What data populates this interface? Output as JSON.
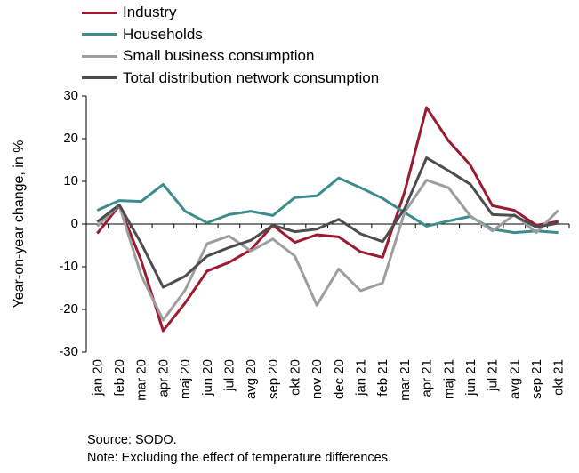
{
  "chart_data": {
    "type": "line",
    "title": "",
    "xlabel": "",
    "ylabel": "Year-on-year change, in %",
    "ylim": [
      -30,
      30
    ],
    "yticks": [
      -30,
      -20,
      -10,
      0,
      10,
      20,
      30
    ],
    "grid": false,
    "legend_position": "top-left",
    "categories": [
      "jan 20",
      "feb 20",
      "mar 20",
      "apr 20",
      "maj 20",
      "jun 20",
      "jul 20",
      "avg 20",
      "sep 20",
      "okt 20",
      "nov 20",
      "dec 20",
      "jan 21",
      "feb 21",
      "mar 21",
      "apr 21",
      "maj 21",
      "jun 21",
      "jul 21",
      "avg 21",
      "sep 21",
      "okt 21"
    ],
    "series": [
      {
        "name": "Industry",
        "color": "#9b1b30",
        "values": [
          -2.2,
          4.3,
          -8.5,
          -25.0,
          -18.5,
          -11.0,
          -9.0,
          -6.0,
          -0.3,
          -4.3,
          -2.5,
          -3.0,
          -6.5,
          -7.8,
          7.5,
          27.3,
          19.5,
          13.8,
          4.3,
          3.2,
          -0.3,
          0.6
        ]
      },
      {
        "name": "Households",
        "color": "#3c8c8c",
        "values": [
          3.2,
          5.5,
          5.3,
          9.3,
          3.0,
          0.3,
          2.2,
          3.0,
          2.0,
          6.2,
          6.6,
          10.8,
          8.5,
          6.0,
          2.7,
          -0.5,
          0.7,
          1.8,
          -1.2,
          -2.0,
          -1.6,
          -2.0
        ]
      },
      {
        "name": "Small business consumption",
        "color": "#9e9e9e",
        "values": [
          -0.5,
          4.4,
          -12.0,
          -22.5,
          -15.5,
          -4.6,
          -2.8,
          -6.3,
          -3.5,
          -7.5,
          -19.0,
          -10.5,
          -15.6,
          -13.8,
          2.8,
          10.3,
          8.5,
          1.9,
          -1.6,
          2.2,
          -2.0,
          3.2
        ]
      },
      {
        "name": "Total distribution network consumption",
        "color": "#4d4d4f",
        "values": [
          0.5,
          4.5,
          -4.5,
          -14.8,
          -12.2,
          -7.5,
          -5.5,
          -3.8,
          -0.3,
          -1.8,
          -1.2,
          1.1,
          -2.3,
          -4.1,
          3.6,
          15.5,
          12.5,
          9.3,
          2.2,
          2.0,
          -0.7,
          0.2
        ]
      }
    ]
  },
  "notes": {
    "source": "Source: SODO.",
    "note": "Note: Excluding the effect of temperature differences."
  }
}
